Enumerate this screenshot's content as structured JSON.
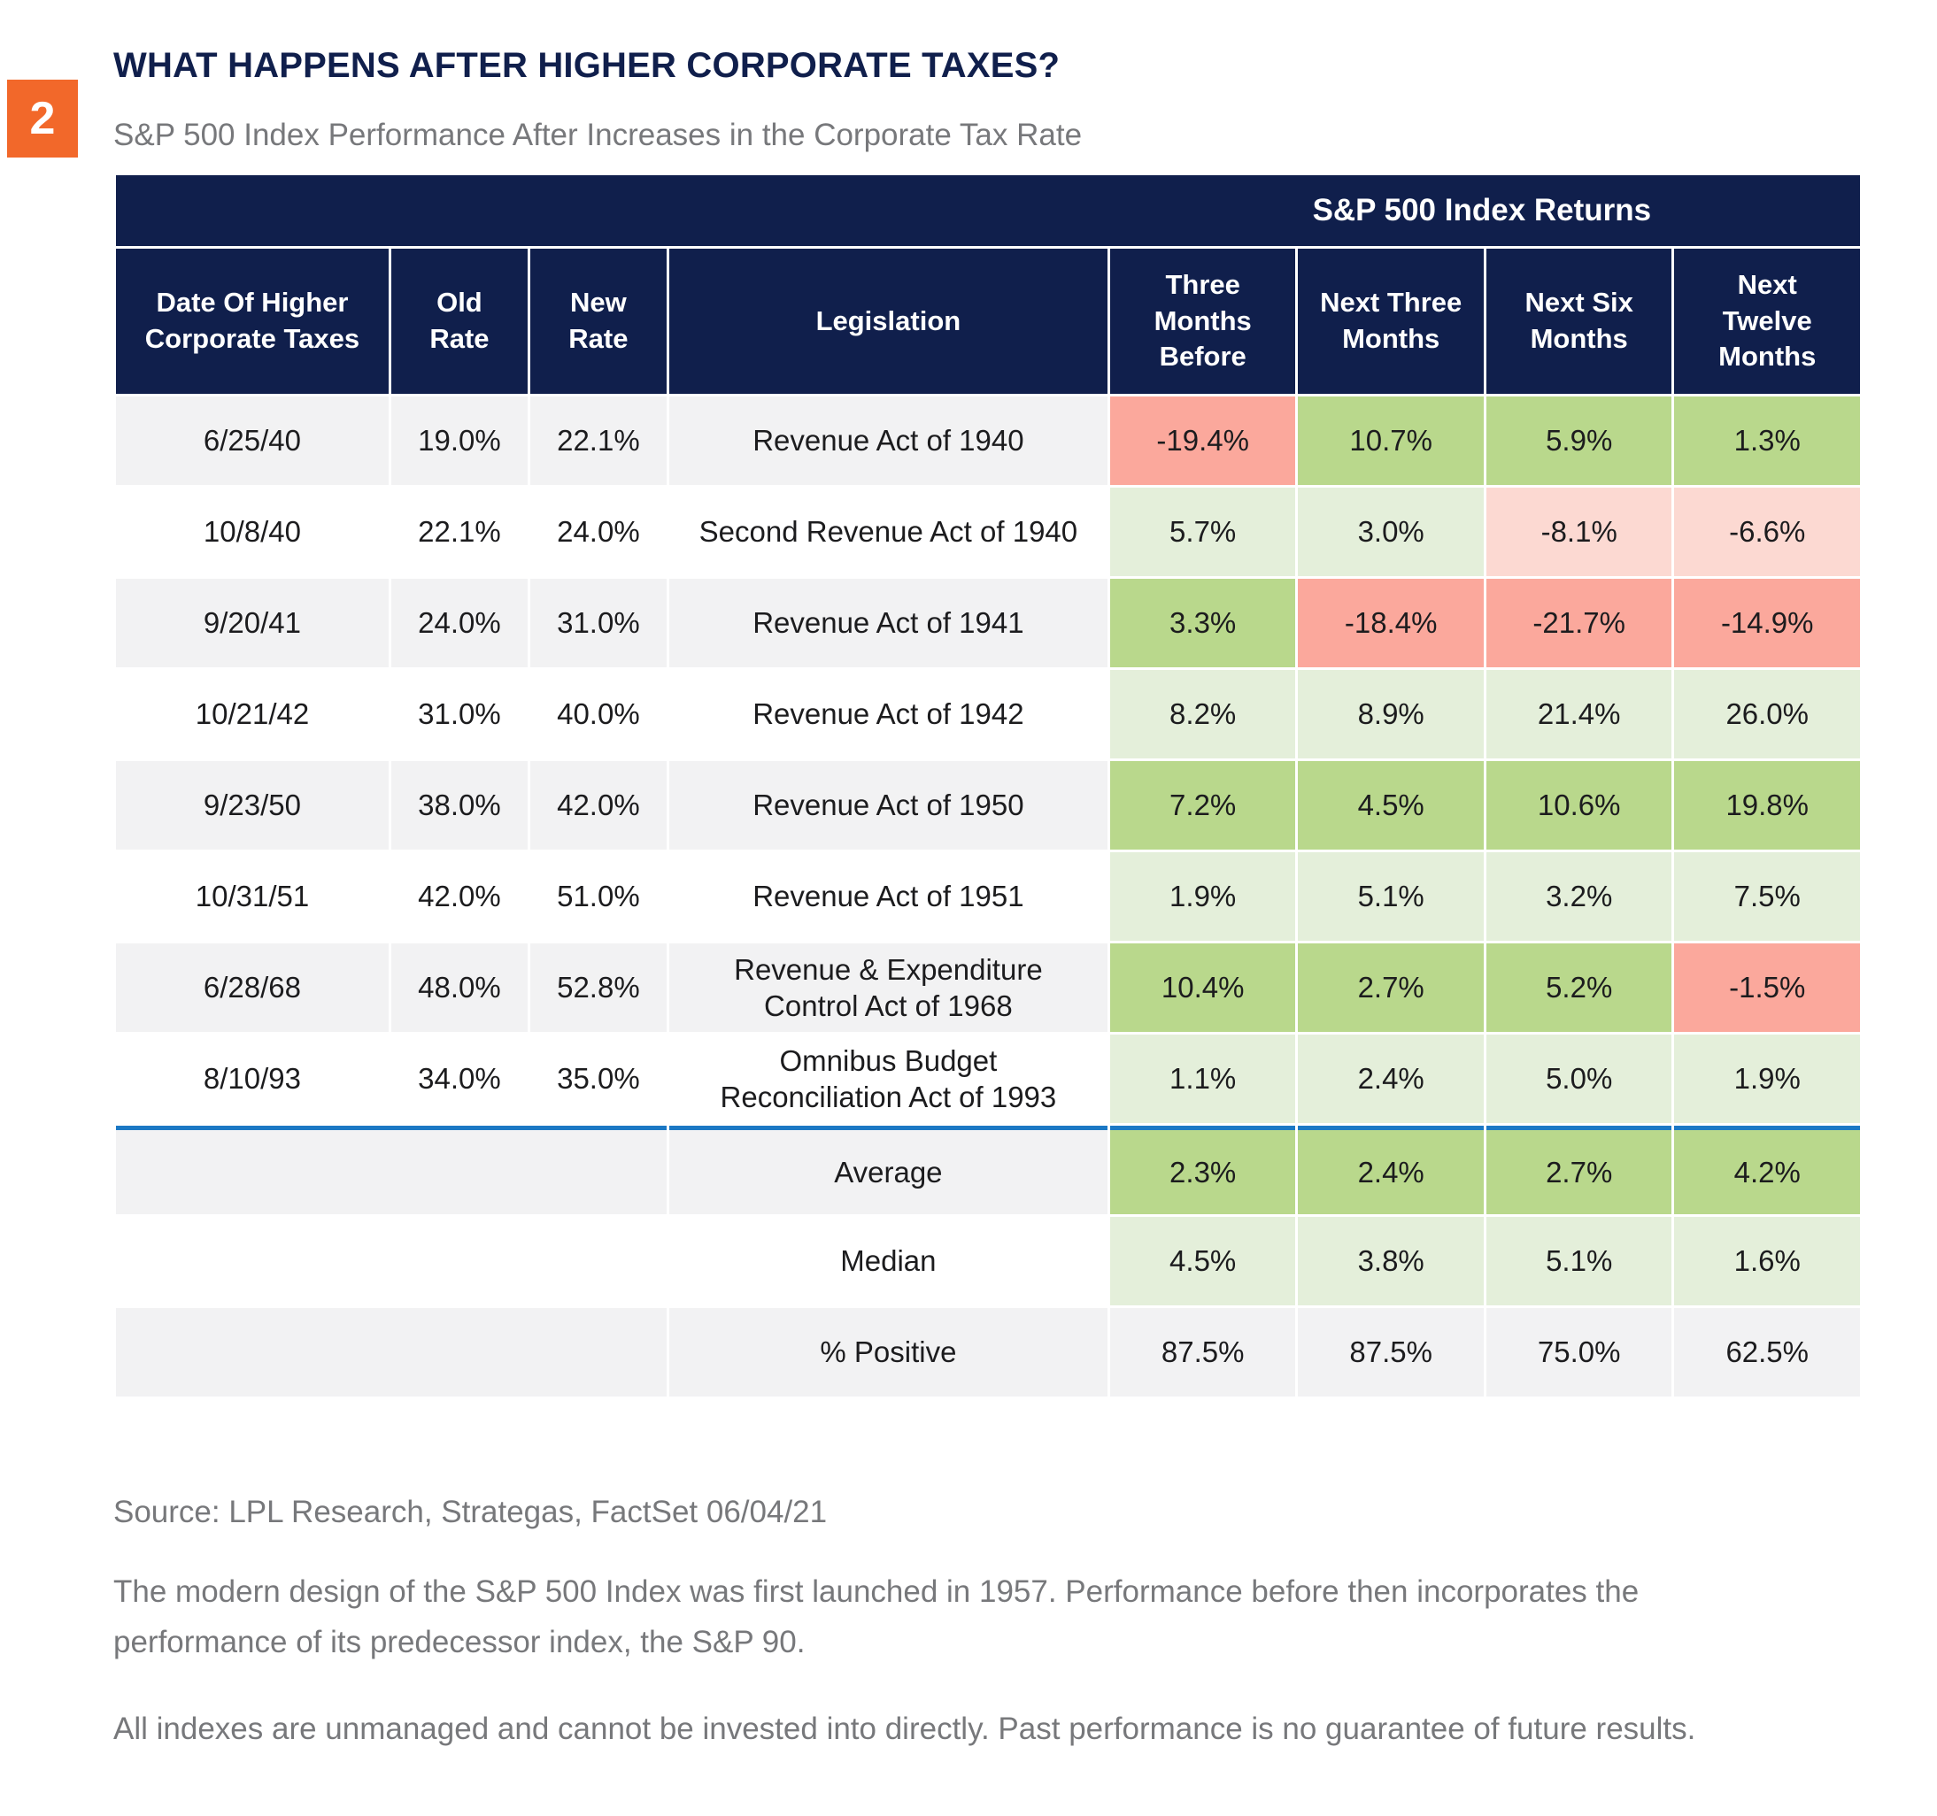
{
  "badge": "2",
  "header": {
    "title": "WHAT HAPPENS AFTER HIGHER CORPORATE TAXES?",
    "subtitle": "S&P 500 Index Performance After Increases in the Corporate Tax Rate"
  },
  "colors": {
    "navy": "#101f4c",
    "orange": "#f2682a",
    "green_strong": "#b9d88c",
    "green_light": "#e4efda",
    "red_strong": "#fba89c",
    "red_light": "#fcd9d2",
    "stripe_gray": "#f2f2f3",
    "separator_blue": "#1b78c4",
    "text_dark": "#1c1c1e",
    "text_gray": "#77787b"
  },
  "chart_data": {
    "type": "table",
    "span_header": "S&P 500 Index Returns",
    "columns": [
      "Date Of Higher\nCorporate Taxes",
      "Old\nRate",
      "New\nRate",
      "Legislation",
      "Three\nMonths\nBefore",
      "Next Three\nMonths",
      "Next Six\nMonths",
      "Next\nTwelve\nMonths"
    ],
    "rows": [
      {
        "date": "6/25/40",
        "old_rate": "19.0%",
        "new_rate": "22.1%",
        "legislation": "Revenue Act of 1940",
        "returns": [
          {
            "value": "-19.4%",
            "tone": "neg-strong"
          },
          {
            "value": "10.7%",
            "tone": "pos-strong"
          },
          {
            "value": "5.9%",
            "tone": "pos-strong"
          },
          {
            "value": "1.3%",
            "tone": "pos-strong"
          }
        ]
      },
      {
        "date": "10/8/40",
        "old_rate": "22.1%",
        "new_rate": "24.0%",
        "legislation": "Second Revenue Act of 1940",
        "returns": [
          {
            "value": "5.7%",
            "tone": "pos-light"
          },
          {
            "value": "3.0%",
            "tone": "pos-light"
          },
          {
            "value": "-8.1%",
            "tone": "neg-light"
          },
          {
            "value": "-6.6%",
            "tone": "neg-light"
          }
        ]
      },
      {
        "date": "9/20/41",
        "old_rate": "24.0%",
        "new_rate": "31.0%",
        "legislation": "Revenue Act of 1941",
        "returns": [
          {
            "value": "3.3%",
            "tone": "pos-strong"
          },
          {
            "value": "-18.4%",
            "tone": "neg-strong"
          },
          {
            "value": "-21.7%",
            "tone": "neg-strong"
          },
          {
            "value": "-14.9%",
            "tone": "neg-strong"
          }
        ]
      },
      {
        "date": "10/21/42",
        "old_rate": "31.0%",
        "new_rate": "40.0%",
        "legislation": "Revenue Act of 1942",
        "returns": [
          {
            "value": "8.2%",
            "tone": "pos-light"
          },
          {
            "value": "8.9%",
            "tone": "pos-light"
          },
          {
            "value": "21.4%",
            "tone": "pos-light"
          },
          {
            "value": "26.0%",
            "tone": "pos-light"
          }
        ]
      },
      {
        "date": "9/23/50",
        "old_rate": "38.0%",
        "new_rate": "42.0%",
        "legislation": "Revenue Act of 1950",
        "returns": [
          {
            "value": "7.2%",
            "tone": "pos-strong"
          },
          {
            "value": "4.5%",
            "tone": "pos-strong"
          },
          {
            "value": "10.6%",
            "tone": "pos-strong"
          },
          {
            "value": "19.8%",
            "tone": "pos-strong"
          }
        ]
      },
      {
        "date": "10/31/51",
        "old_rate": "42.0%",
        "new_rate": "51.0%",
        "legislation": "Revenue Act  of 1951",
        "returns": [
          {
            "value": "1.9%",
            "tone": "pos-light"
          },
          {
            "value": "5.1%",
            "tone": "pos-light"
          },
          {
            "value": "3.2%",
            "tone": "pos-light"
          },
          {
            "value": "7.5%",
            "tone": "pos-light"
          }
        ]
      },
      {
        "date": "6/28/68",
        "old_rate": "48.0%",
        "new_rate": "52.8%",
        "legislation": "Revenue & Expenditure\nControl Act of 1968",
        "returns": [
          {
            "value": "10.4%",
            "tone": "pos-strong"
          },
          {
            "value": "2.7%",
            "tone": "pos-strong"
          },
          {
            "value": "5.2%",
            "tone": "pos-strong"
          },
          {
            "value": "-1.5%",
            "tone": "neg-strong"
          }
        ]
      },
      {
        "date": "8/10/93",
        "old_rate": "34.0%",
        "new_rate": "35.0%",
        "legislation": "Omnibus Budget\nReconciliation Act of 1993",
        "returns": [
          {
            "value": "1.1%",
            "tone": "pos-light"
          },
          {
            "value": "2.4%",
            "tone": "pos-light"
          },
          {
            "value": "5.0%",
            "tone": "pos-light"
          },
          {
            "value": "1.9%",
            "tone": "pos-light"
          }
        ]
      }
    ],
    "summary_rows": [
      {
        "label": "Average",
        "returns": [
          {
            "value": "2.3%",
            "tone": "pos-strong"
          },
          {
            "value": "2.4%",
            "tone": "pos-strong"
          },
          {
            "value": "2.7%",
            "tone": "pos-strong"
          },
          {
            "value": "4.2%",
            "tone": "pos-strong"
          }
        ]
      },
      {
        "label": "Median",
        "returns": [
          {
            "value": "4.5%",
            "tone": "pos-light"
          },
          {
            "value": "3.8%",
            "tone": "pos-light"
          },
          {
            "value": "5.1%",
            "tone": "pos-light"
          },
          {
            "value": "1.6%",
            "tone": "pos-light"
          }
        ]
      },
      {
        "label": "% Positive",
        "returns": [
          {
            "value": "87.5%",
            "tone": "neutral"
          },
          {
            "value": "87.5%",
            "tone": "neutral"
          },
          {
            "value": "75.0%",
            "tone": "neutral"
          },
          {
            "value": "62.5%",
            "tone": "neutral"
          }
        ]
      }
    ]
  },
  "footnotes": {
    "source": "Source: LPL Research, Strategas, FactSet 06/04/21",
    "note1": "The modern design of the S&P 500 Index was first launched in 1957. Performance before then incorporates the performance of its predecessor index, the S&P 90.",
    "note2": "All indexes are unmanaged and cannot be invested into directly. Past performance is no guarantee of future results."
  }
}
